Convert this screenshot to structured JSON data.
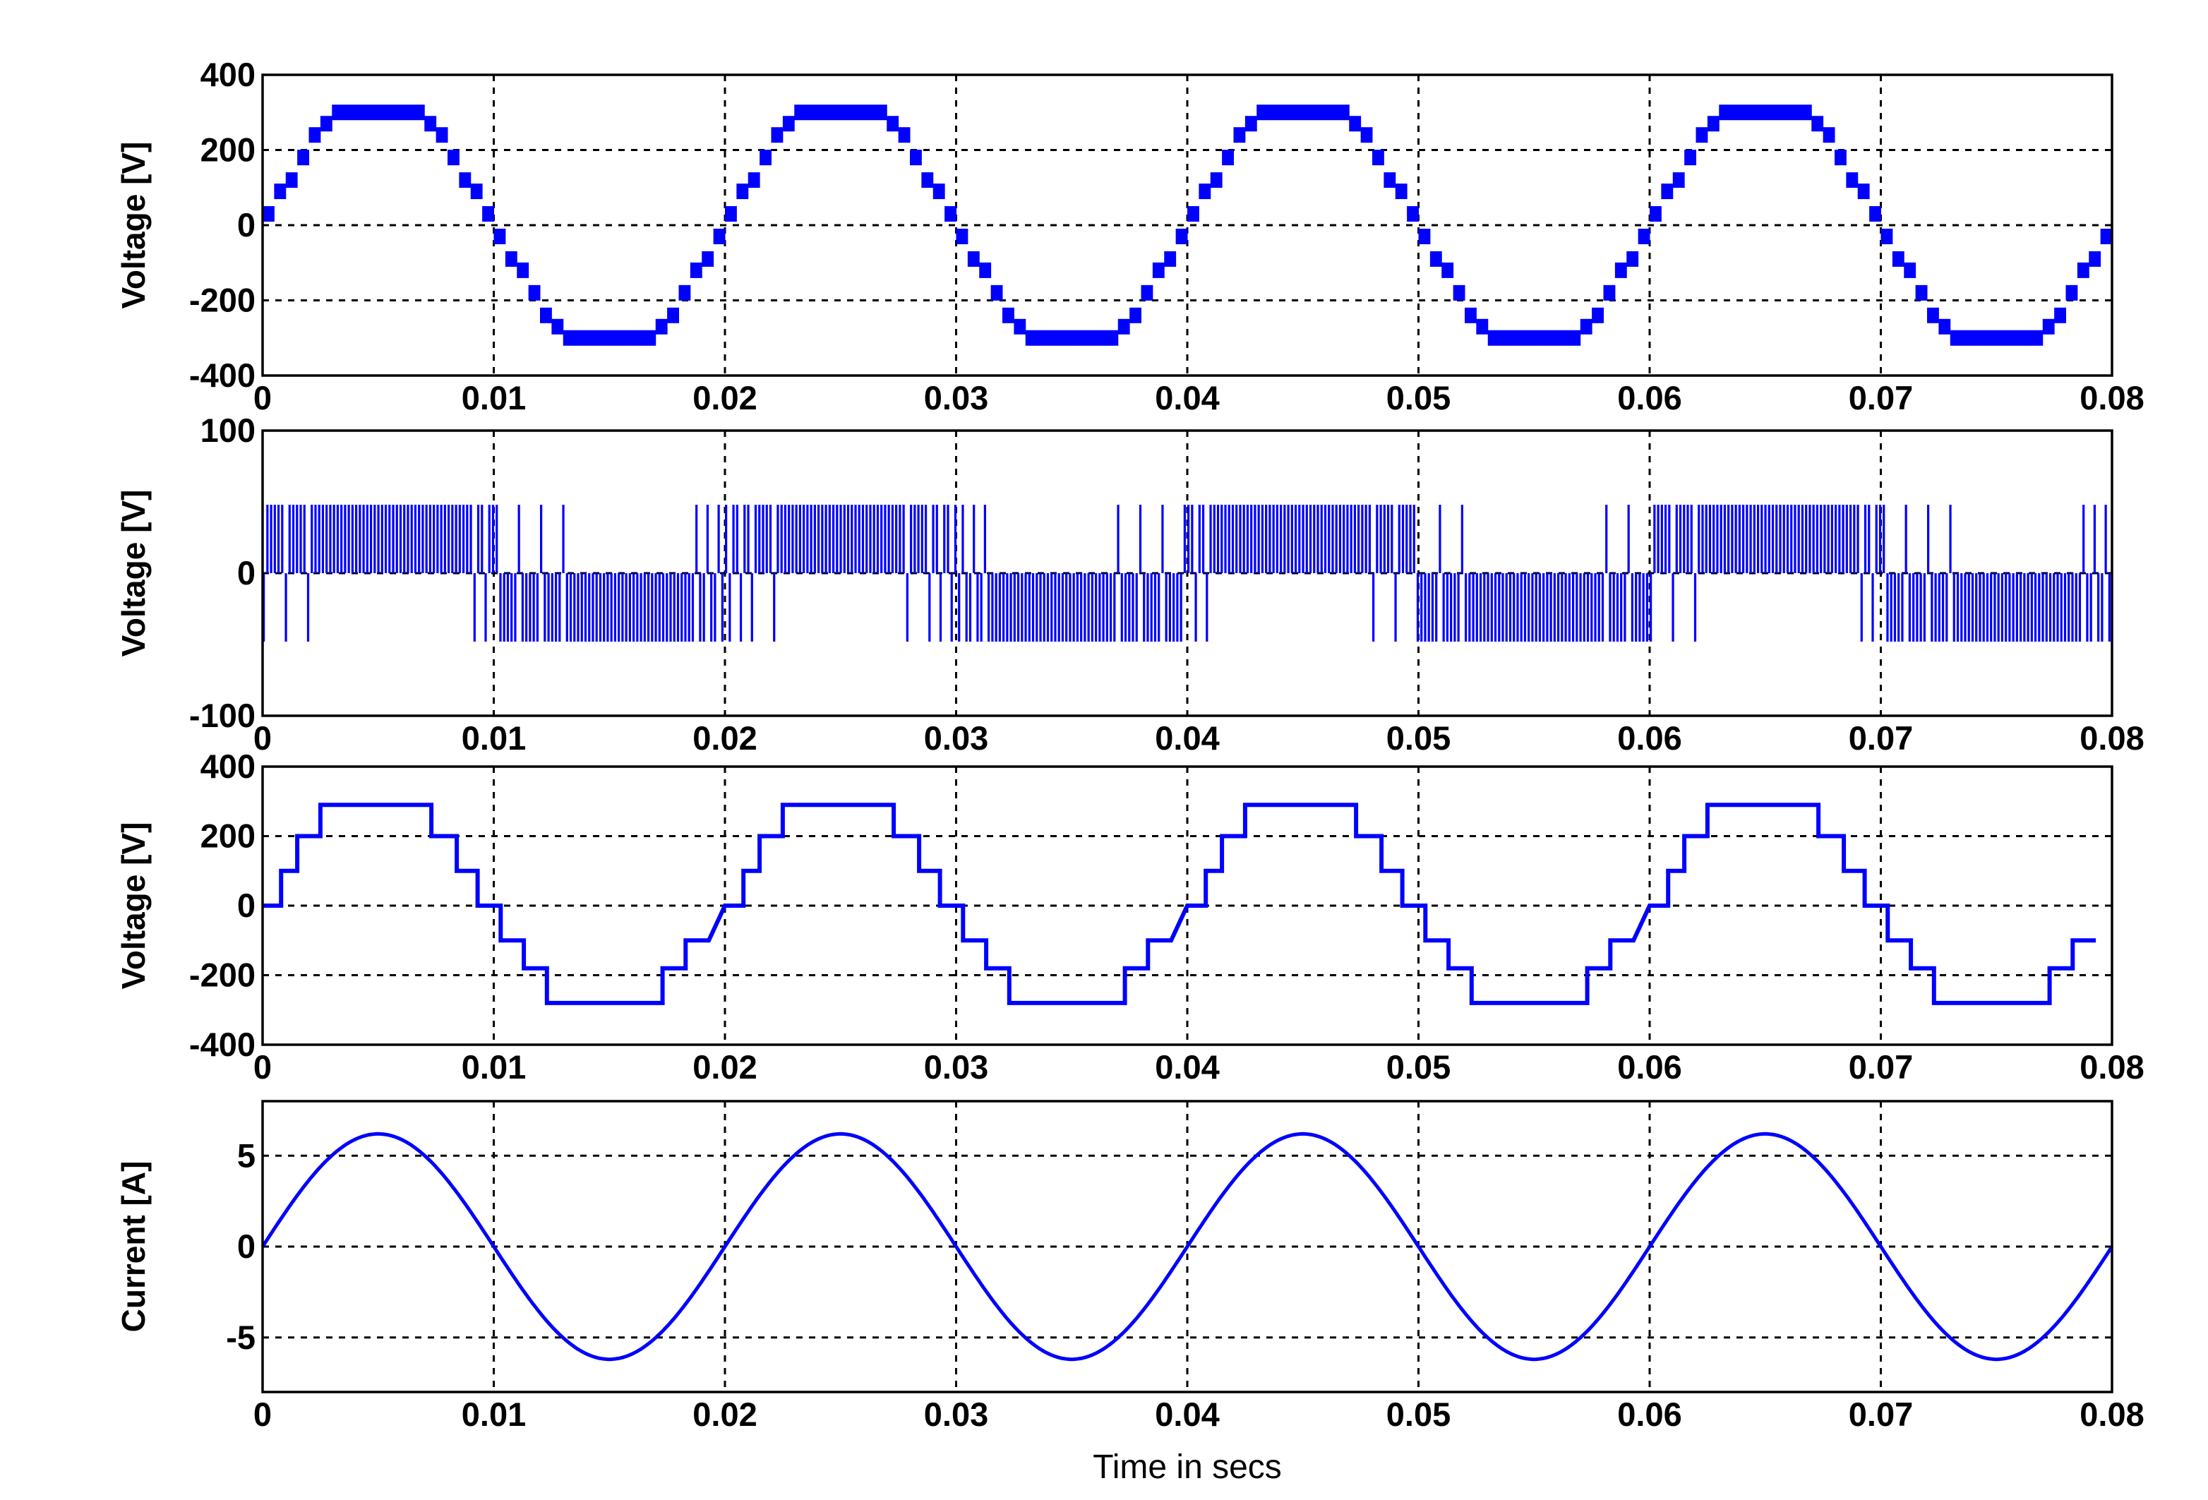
{
  "chart_data": [
    {
      "type": "line",
      "series": [
        {
          "style": "staircase-pwm-band",
          "fundamental_hz": 50,
          "peak": 310,
          "step": 30
        }
      ],
      "xlabel": "",
      "ylabel": "Voltage [V]",
      "xlim": [
        0,
        0.08
      ],
      "ylim": [
        -400,
        400
      ],
      "xticks": [
        0,
        0.01,
        0.02,
        0.03,
        0.04,
        0.05,
        0.06,
        0.07,
        0.08
      ],
      "xtick_labels": [
        "0",
        "0.01",
        "0.02",
        "0.03",
        "0.04",
        "0.05",
        "0.06",
        "0.07",
        "0.08"
      ],
      "yticks": [
        -400,
        -200,
        0,
        200,
        400
      ],
      "ytick_labels": [
        "-400",
        "-200",
        "0",
        "200",
        "400"
      ],
      "grid": true
    },
    {
      "type": "line",
      "series": [
        {
          "style": "pwm-pulses",
          "fundamental_hz": 50,
          "amplitude": 48
        }
      ],
      "xlabel": "",
      "ylabel": "Voltage [V]",
      "xlim": [
        0,
        0.08
      ],
      "ylim": [
        -100,
        100
      ],
      "xticks": [
        0,
        0.01,
        0.02,
        0.03,
        0.04,
        0.05,
        0.06,
        0.07,
        0.08
      ],
      "xtick_labels": [
        "0",
        "0.01",
        "0.02",
        "0.03",
        "0.04",
        "0.05",
        "0.06",
        "0.07",
        "0.08"
      ],
      "yticks": [
        -100,
        0,
        100
      ],
      "ytick_labels": [
        "-100",
        "0",
        "100"
      ],
      "grid": true
    },
    {
      "type": "line",
      "series": [
        {
          "style": "staircase",
          "fundamental_hz": 50,
          "levels": [
            0,
            100,
            200,
            290,
            200,
            100,
            0,
            -100,
            -180,
            -280,
            -180,
            -100
          ],
          "switch_times": [
            0,
            0.0008,
            0.0015,
            0.0025,
            0.0073,
            0.0084,
            0.0093,
            0.0103,
            0.0113,
            0.0123,
            0.0173,
            0.0183,
            0.0193
          ]
        }
      ],
      "xlabel": "",
      "ylabel": "Voltage [V]",
      "xlim": [
        0,
        0.08
      ],
      "ylim": [
        -400,
        400
      ],
      "xticks": [
        0,
        0.01,
        0.02,
        0.03,
        0.04,
        0.05,
        0.06,
        0.07,
        0.08
      ],
      "xtick_labels": [
        "0",
        "0.01",
        "0.02",
        "0.03",
        "0.04",
        "0.05",
        "0.06",
        "0.07",
        "0.08"
      ],
      "yticks": [
        -400,
        -200,
        0,
        200,
        400
      ],
      "ytick_labels": [
        "-400",
        "-200",
        "0",
        "200",
        "400"
      ],
      "grid": true
    },
    {
      "type": "line",
      "series": [
        {
          "style": "sine",
          "fundamental_hz": 50,
          "amplitude": 6.2
        }
      ],
      "xlabel": "Time in secs",
      "ylabel": "Current [A]",
      "xlim": [
        0,
        0.08
      ],
      "ylim": [
        -8,
        8
      ],
      "xticks": [
        0,
        0.01,
        0.02,
        0.03,
        0.04,
        0.05,
        0.06,
        0.07,
        0.08
      ],
      "xtick_labels": [
        "0",
        "0.01",
        "0.02",
        "0.03",
        "0.04",
        "0.05",
        "0.06",
        "0.07",
        "0.08"
      ],
      "yticks": [
        -5,
        0,
        5
      ],
      "ytick_labels": [
        "-5",
        "0",
        "5"
      ],
      "grid": true
    }
  ],
  "colors": {
    "series": "#0000ff",
    "axes": "#000000",
    "background": "#ffffff"
  }
}
